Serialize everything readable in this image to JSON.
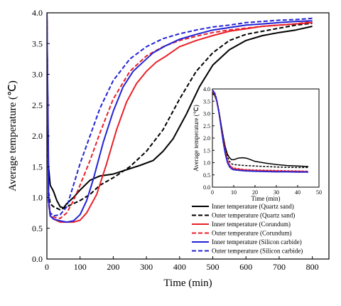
{
  "chart_data": [
    {
      "type": "line",
      "title": "",
      "xlabel": "Time (min)",
      "ylabel": "Average temperature (℃)",
      "xlim": [
        0,
        850
      ],
      "ylim": [
        0.0,
        4.0
      ],
      "xticks": [
        0,
        100,
        200,
        300,
        400,
        500,
        600,
        700,
        800
      ],
      "yticks": [
        0.0,
        0.5,
        1.0,
        1.5,
        2.0,
        2.5,
        3.0,
        3.5,
        4.0
      ],
      "legend_position": "bottom-right",
      "series": [
        {
          "name": "Inner temperature (Quartz sand)",
          "color": "#000000",
          "dash": "solid",
          "x": [
            0,
            5,
            10,
            15,
            20,
            30,
            40,
            50,
            60,
            80,
            100,
            130,
            160,
            200,
            240,
            280,
            320,
            350,
            380,
            420,
            460,
            500,
            550,
            600,
            650,
            700,
            750,
            800
          ],
          "y": [
            4.0,
            1.5,
            1.2,
            1.15,
            1.1,
            0.95,
            0.85,
            0.83,
            0.9,
            1.0,
            1.12,
            1.28,
            1.35,
            1.38,
            1.45,
            1.52,
            1.6,
            1.75,
            1.95,
            2.35,
            2.8,
            3.15,
            3.4,
            3.55,
            3.63,
            3.68,
            3.72,
            3.78
          ]
        },
        {
          "name": "Outer temperature (Quartz sand)",
          "color": "#000000",
          "dash": "dashed",
          "x": [
            0,
            5,
            10,
            20,
            40,
            60,
            80,
            100,
            130,
            160,
            200,
            250,
            300,
            350,
            400,
            450,
            500,
            550,
            600,
            650,
            700,
            750,
            800
          ],
          "y": [
            4.0,
            1.1,
            0.9,
            0.85,
            0.8,
            0.85,
            0.9,
            0.95,
            1.05,
            1.2,
            1.32,
            1.5,
            1.75,
            2.1,
            2.6,
            3.05,
            3.35,
            3.55,
            3.65,
            3.7,
            3.75,
            3.8,
            3.83
          ]
        },
        {
          "name": "Inner temperature (Corundum)",
          "color": "#e8212a",
          "dash": "solid",
          "x": [
            0,
            5,
            10,
            20,
            40,
            60,
            80,
            100,
            120,
            150,
            180,
            210,
            240,
            270,
            300,
            330,
            360,
            400,
            450,
            500,
            550,
            600,
            650,
            700,
            750,
            800
          ],
          "y": [
            4.0,
            1.0,
            0.7,
            0.65,
            0.6,
            0.6,
            0.6,
            0.63,
            0.75,
            1.05,
            1.55,
            2.1,
            2.55,
            2.85,
            3.05,
            3.2,
            3.3,
            3.45,
            3.55,
            3.63,
            3.7,
            3.74,
            3.78,
            3.8,
            3.82,
            3.84
          ]
        },
        {
          "name": "Outer temperature (Corundum)",
          "color": "#e8212a",
          "dash": "dashed",
          "x": [
            0,
            5,
            10,
            20,
            40,
            60,
            80,
            100,
            130,
            160,
            200,
            250,
            300,
            350,
            400,
            450,
            500,
            550,
            600,
            650,
            700,
            750,
            800
          ],
          "y": [
            4.0,
            0.9,
            0.72,
            0.68,
            0.66,
            0.75,
            0.95,
            1.2,
            1.6,
            2.05,
            2.6,
            3.05,
            3.3,
            3.45,
            3.55,
            3.62,
            3.68,
            3.72,
            3.75,
            3.78,
            3.8,
            3.82,
            3.86
          ]
        },
        {
          "name": "Inner temperature (Silicon carbide)",
          "color": "#2323d6",
          "dash": "solid",
          "x": [
            0,
            5,
            10,
            20,
            40,
            60,
            80,
            100,
            120,
            140,
            170,
            200,
            230,
            260,
            290,
            320,
            360,
            400,
            450,
            500,
            550,
            600,
            650,
            700,
            750,
            800
          ],
          "y": [
            4.0,
            0.95,
            0.7,
            0.65,
            0.62,
            0.6,
            0.62,
            0.72,
            0.95,
            1.3,
            1.9,
            2.4,
            2.8,
            3.05,
            3.2,
            3.35,
            3.47,
            3.57,
            3.65,
            3.72,
            3.76,
            3.8,
            3.82,
            3.84,
            3.86,
            3.87
          ]
        },
        {
          "name": "Outer temperature (Silicon carbide)",
          "color": "#2323d6",
          "dash": "dashed",
          "x": [
            0,
            5,
            10,
            20,
            40,
            60,
            80,
            100,
            130,
            160,
            200,
            250,
            300,
            350,
            400,
            450,
            500,
            550,
            600,
            650,
            700,
            750,
            800
          ],
          "y": [
            4.0,
            0.95,
            0.75,
            0.7,
            0.72,
            0.85,
            1.2,
            1.55,
            2.0,
            2.45,
            2.9,
            3.25,
            3.45,
            3.58,
            3.66,
            3.72,
            3.77,
            3.8,
            3.84,
            3.86,
            3.88,
            3.89,
            3.91
          ]
        }
      ]
    },
    {
      "type": "line",
      "title": "",
      "xlabel": "Time (min)",
      "ylabel": "Average temperature (℃)",
      "xlim": [
        0,
        50
      ],
      "ylim": [
        0.0,
        4.0
      ],
      "xticks": [
        0,
        10,
        20,
        30,
        40,
        50
      ],
      "yticks": [
        0.0,
        0.5,
        1.0,
        1.5,
        2.0,
        2.5,
        3.0,
        3.5,
        4.0
      ],
      "legend_position": "none",
      "series": [
        {
          "name": "Inner temperature (Quartz sand)",
          "color": "#000000",
          "dash": "solid",
          "x": [
            0,
            1,
            2,
            3,
            4,
            5,
            6,
            7,
            8,
            9,
            10,
            12,
            14,
            16,
            18,
            20,
            25,
            30,
            35,
            40,
            45
          ],
          "y": [
            3.8,
            3.75,
            3.5,
            3.1,
            2.6,
            2.1,
            1.65,
            1.35,
            1.2,
            1.12,
            1.12,
            1.18,
            1.2,
            1.18,
            1.12,
            1.05,
            0.98,
            0.92,
            0.88,
            0.86,
            0.84
          ]
        },
        {
          "name": "Outer temperature (Quartz sand)",
          "color": "#000000",
          "dash": "dashed",
          "x": [
            0,
            1,
            2,
            3,
            4,
            5,
            6,
            7,
            8,
            9,
            10,
            15,
            20,
            25,
            30,
            35,
            40,
            45
          ],
          "y": [
            3.85,
            3.8,
            3.55,
            3.15,
            2.6,
            2.05,
            1.6,
            1.25,
            1.05,
            0.95,
            0.92,
            0.88,
            0.86,
            0.84,
            0.82,
            0.81,
            0.8,
            0.8
          ]
        },
        {
          "name": "Inner temperature (Corundum)",
          "color": "#e8212a",
          "dash": "solid",
          "x": [
            0,
            1,
            2,
            3,
            4,
            5,
            6,
            7,
            8,
            9,
            10,
            15,
            20,
            25,
            30,
            35,
            40,
            45
          ],
          "y": [
            3.9,
            3.8,
            3.5,
            3.05,
            2.5,
            1.95,
            1.45,
            1.1,
            0.9,
            0.8,
            0.75,
            0.7,
            0.68,
            0.67,
            0.66,
            0.65,
            0.65,
            0.63
          ]
        },
        {
          "name": "Outer temperature (Corundum)",
          "color": "#e8212a",
          "dash": "dashed",
          "x": [
            0,
            1,
            2,
            3,
            4,
            5,
            6,
            7,
            8,
            9,
            10,
            15,
            20,
            25,
            30,
            35,
            40,
            45
          ],
          "y": [
            3.9,
            3.82,
            3.55,
            3.1,
            2.55,
            2.0,
            1.5,
            1.12,
            0.92,
            0.82,
            0.78,
            0.72,
            0.7,
            0.69,
            0.68,
            0.67,
            0.66,
            0.65
          ]
        },
        {
          "name": "Inner temperature (Silicon carbide)",
          "color": "#2323d6",
          "dash": "solid",
          "x": [
            0,
            1,
            2,
            3,
            4,
            5,
            6,
            7,
            8,
            9,
            10,
            15,
            20,
            25,
            30,
            35,
            40,
            45
          ],
          "y": [
            3.95,
            3.85,
            3.55,
            3.05,
            2.45,
            1.85,
            1.35,
            1.0,
            0.82,
            0.74,
            0.7,
            0.66,
            0.64,
            0.63,
            0.62,
            0.62,
            0.61,
            0.61
          ]
        },
        {
          "name": "Outer temperature (Silicon carbide)",
          "color": "#2323d6",
          "dash": "dashed",
          "x": [
            0,
            1,
            2,
            3,
            4,
            5,
            6,
            7,
            8,
            9,
            10,
            15,
            20,
            25,
            30,
            35,
            40,
            45
          ],
          "y": [
            3.95,
            3.88,
            3.6,
            3.1,
            2.5,
            1.9,
            1.4,
            1.05,
            0.85,
            0.76,
            0.72,
            0.68,
            0.66,
            0.65,
            0.64,
            0.64,
            0.63,
            0.63
          ]
        }
      ]
    }
  ]
}
